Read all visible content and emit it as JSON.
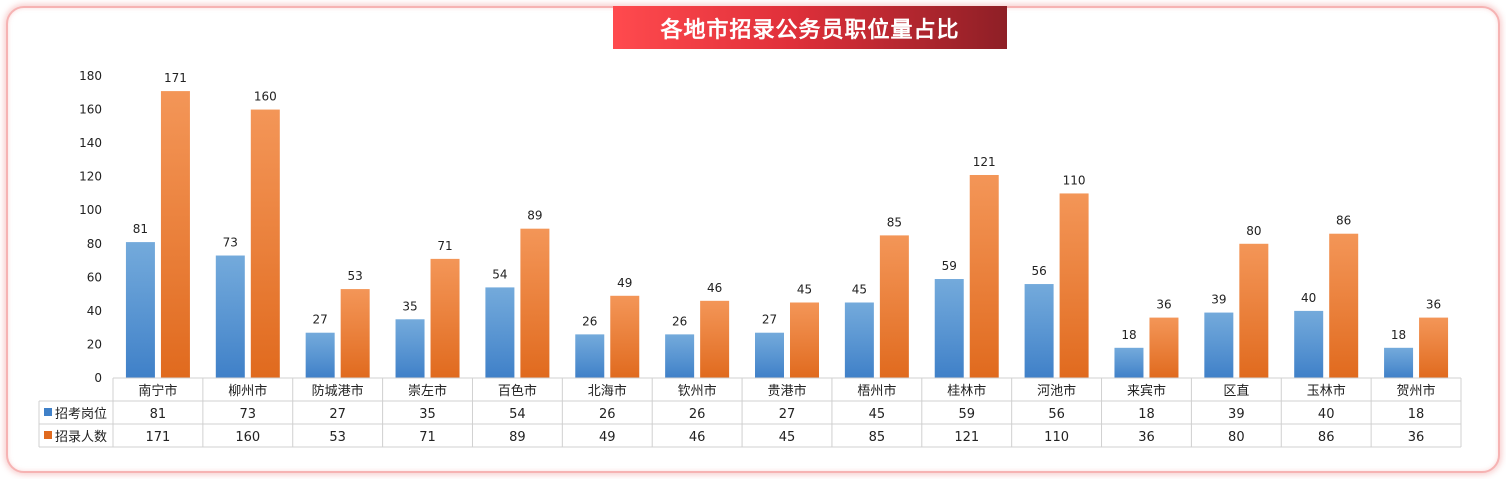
{
  "title": "各地市招录公务员职位量占比",
  "colors": {
    "series1": "#5b9bd5",
    "series1_dark": "#3f80c8",
    "series2": "#f28a45",
    "series2_dark": "#e06a1e",
    "banner": "#e0303a"
  },
  "chart_data": {
    "type": "bar",
    "categories": [
      "南宁市",
      "柳州市",
      "防城港市",
      "崇左市",
      "百色市",
      "北海市",
      "钦州市",
      "贵港市",
      "梧州市",
      "桂林市",
      "河池市",
      "来宾市",
      "区直",
      "玉林市",
      "贺州市"
    ],
    "series": [
      {
        "name": "招考岗位",
        "values": [
          81,
          73,
          27,
          35,
          54,
          26,
          26,
          27,
          45,
          59,
          56,
          18,
          39,
          40,
          18
        ]
      },
      {
        "name": "招录人数",
        "values": [
          171,
          160,
          53,
          71,
          89,
          49,
          46,
          45,
          85,
          121,
          110,
          36,
          80,
          86,
          36
        ]
      }
    ],
    "ylim": [
      0,
      180
    ],
    "yticks": [
      0,
      20,
      40,
      60,
      80,
      100,
      120,
      140,
      160,
      180
    ],
    "grid": false,
    "legend": "data-table"
  }
}
